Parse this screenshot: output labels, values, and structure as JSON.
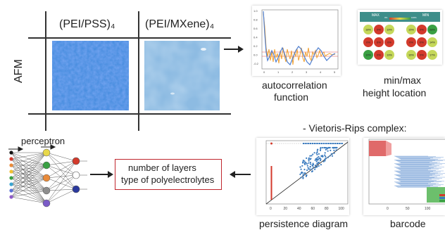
{
  "table": {
    "col1_label": "(PEI/PSS)₄",
    "col2_label": "(PEI/MXene)₄",
    "row_label": "AFM"
  },
  "autocorrelation": {
    "caption_line1": "autocorrelation",
    "caption_line2": "function",
    "y_ticks": [
      "1.0",
      "0.8",
      "0.6",
      "0.4",
      "0.2",
      "0.0",
      "-0.2"
    ],
    "x_ticks": [
      "0",
      "1",
      "2",
      "3",
      "4",
      "5"
    ]
  },
  "minmax": {
    "caption_line1": "min/max",
    "caption_line2": "height location",
    "header_max": "MAX",
    "header_min": "MIN",
    "colorbar_left": "0%",
    "colorbar_right": "100%",
    "left_values": [
      "18%",
      "0%",
      "19%",
      "0%",
      "6%",
      "0%",
      "10%",
      "0%",
      "19%"
    ],
    "left_colors": [
      "#c5d85a",
      "#d33a2c",
      "#c5d85a",
      "#d33a2c",
      "#d33a2c",
      "#d33a2c",
      "#3aa043",
      "#d33a2c",
      "#c5d85a"
    ],
    "right_values": [
      "15%",
      "0%",
      "28%",
      "0%",
      "0%",
      "14%",
      "16%",
      "0%",
      "17%"
    ],
    "right_colors": [
      "#c5d85a",
      "#d33a2c",
      "#3aa043",
      "#d33a2c",
      "#d33a2c",
      "#c5d85a",
      "#c5d85a",
      "#d33a2c",
      "#c5d85a"
    ]
  },
  "vietoris_title": "- Vietoris-Rips complex:",
  "perceptron_label": "perceptron",
  "output_box": {
    "line1": "number of layers",
    "line2": "type of polyelectrolytes"
  },
  "persistence": {
    "caption": "persistence diagram",
    "x_ticks": [
      "0",
      "20",
      "40",
      "60",
      "80",
      "100"
    ]
  },
  "barcode": {
    "caption": "barcode",
    "x_ticks": [
      "0",
      "50",
      "100"
    ]
  },
  "colors": {
    "accent_red": "#c0262d",
    "afm_blue": "#2c6fd6",
    "afm_light": "#9cc4e4",
    "line_blue": "#4f7fd0",
    "line_orange": "#f0a030"
  }
}
